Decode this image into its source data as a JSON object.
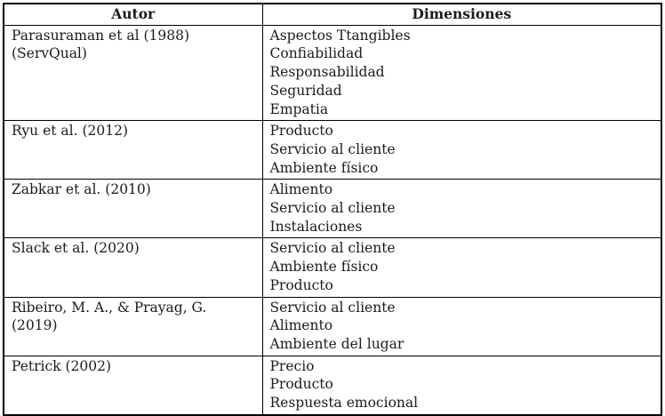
{
  "table": {
    "colors": {
      "border": "#000000",
      "text": "#1b1b1b",
      "background": "#ffffff"
    },
    "columns": [
      {
        "label": "Autor"
      },
      {
        "label": "Dimensiones"
      }
    ],
    "rows": [
      {
        "autor": "Parasuraman et al (1988) (ServQual)",
        "dimensiones": [
          "Aspectos Ttangibles",
          "Confiabilidad",
          "Responsabilidad",
          "Seguridad",
          "Empatia"
        ]
      },
      {
        "autor": "Ryu et al. (2012)",
        "dimensiones": [
          "Producto",
          "Servicio al cliente",
          "Ambiente físico"
        ]
      },
      {
        "autor": "Zabkar et al. (2010)",
        "dimensiones": [
          "Alimento",
          "Servicio al cliente",
          "Instalaciones"
        ]
      },
      {
        "autor": "Slack et al. (2020)",
        "dimensiones": [
          "Servicio al cliente",
          "Ambiente físico",
          "Producto"
        ]
      },
      {
        "autor": "Ribeiro, M. A., & Prayag, G. (2019)",
        "dimensiones": [
          "Servicio al cliente",
          "Alimento",
          "Ambiente del lugar"
        ]
      },
      {
        "autor": "Petrick (2002)",
        "dimensiones": [
          "Precio",
          "Producto",
          "Respuesta emocional"
        ]
      }
    ]
  }
}
